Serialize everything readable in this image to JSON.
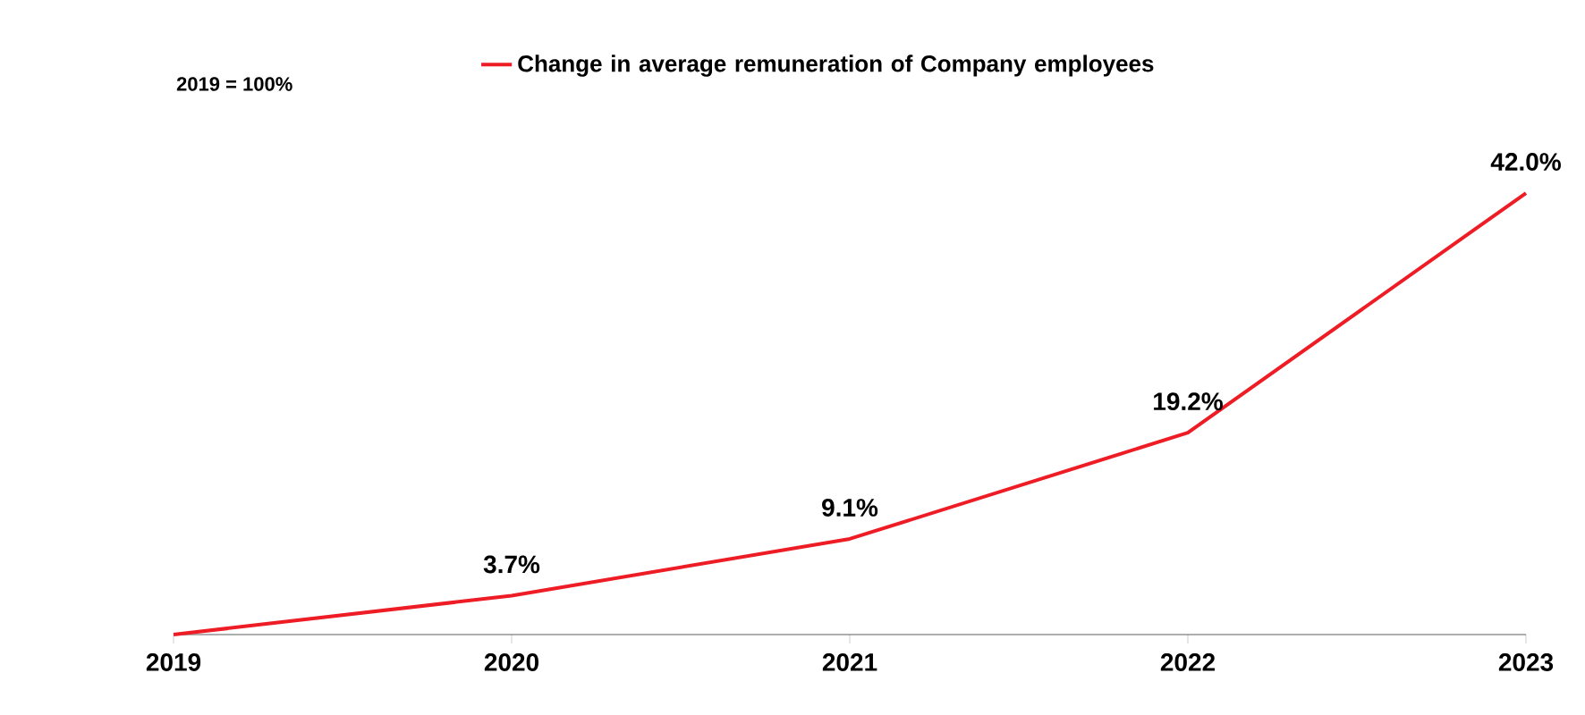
{
  "chart_data": {
    "type": "line",
    "categories": [
      "2019",
      "2020",
      "2021",
      "2022",
      "2023"
    ],
    "series": [
      {
        "name": "Change in average remuneration of Company employees",
        "color": "#ee1c25",
        "values": [
          0,
          3.7,
          9.1,
          19.2,
          42.0
        ],
        "value_labels": [
          null,
          "3.7%",
          "9.1%",
          "19.2%",
          "42.0%"
        ]
      }
    ],
    "annotations": [
      "2019 = 100%"
    ],
    "legend": "top",
    "marker": "none",
    "line_style": "solid",
    "grid": false
  }
}
